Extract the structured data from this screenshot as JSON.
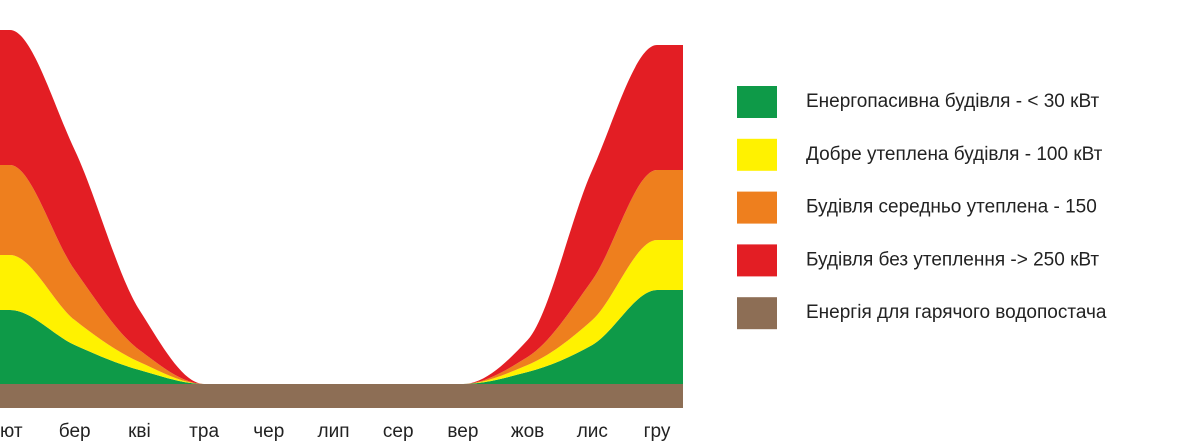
{
  "chart_data": {
    "type": "stacked_area",
    "categories": [
      "ют",
      "бер",
      "кві",
      "тра",
      "чер",
      "лип",
      "сер",
      "вер",
      "жов",
      "лис",
      "гру"
    ],
    "ylim": [
      0,
      384
    ],
    "series": [
      {
        "name": "Енергопасивна будівля - < 30 кВт",
        "color": "#0e9a48",
        "values": [
          74,
          39,
          14,
          0,
          0,
          0,
          0,
          0,
          12,
          39,
          94
        ]
      },
      {
        "name": "Добре утеплена будівля - 100 кВт",
        "color": "#fff200",
        "values": [
          55,
          25,
          8,
          0,
          0,
          0,
          0,
          0,
          7,
          25,
          50
        ]
      },
      {
        "name": "Будівля середньо утеплена - 150",
        "color": "#ee7f1e",
        "values": [
          90,
          50,
          12,
          0,
          0,
          0,
          0,
          0,
          8,
          40,
          70
        ]
      },
      {
        "name": "Будівля без утеплення -> 250 кВт",
        "color": "#e31e24",
        "values": [
          135,
          120,
          40,
          0,
          0,
          0,
          0,
          0,
          17,
          110,
          125
        ]
      },
      {
        "name": "Енергія для гарячого водопостача",
        "color": "#8d6e55",
        "values": [
          24,
          24,
          24,
          24,
          24,
          24,
          24,
          24,
          24,
          24,
          24
        ]
      }
    ]
  }
}
